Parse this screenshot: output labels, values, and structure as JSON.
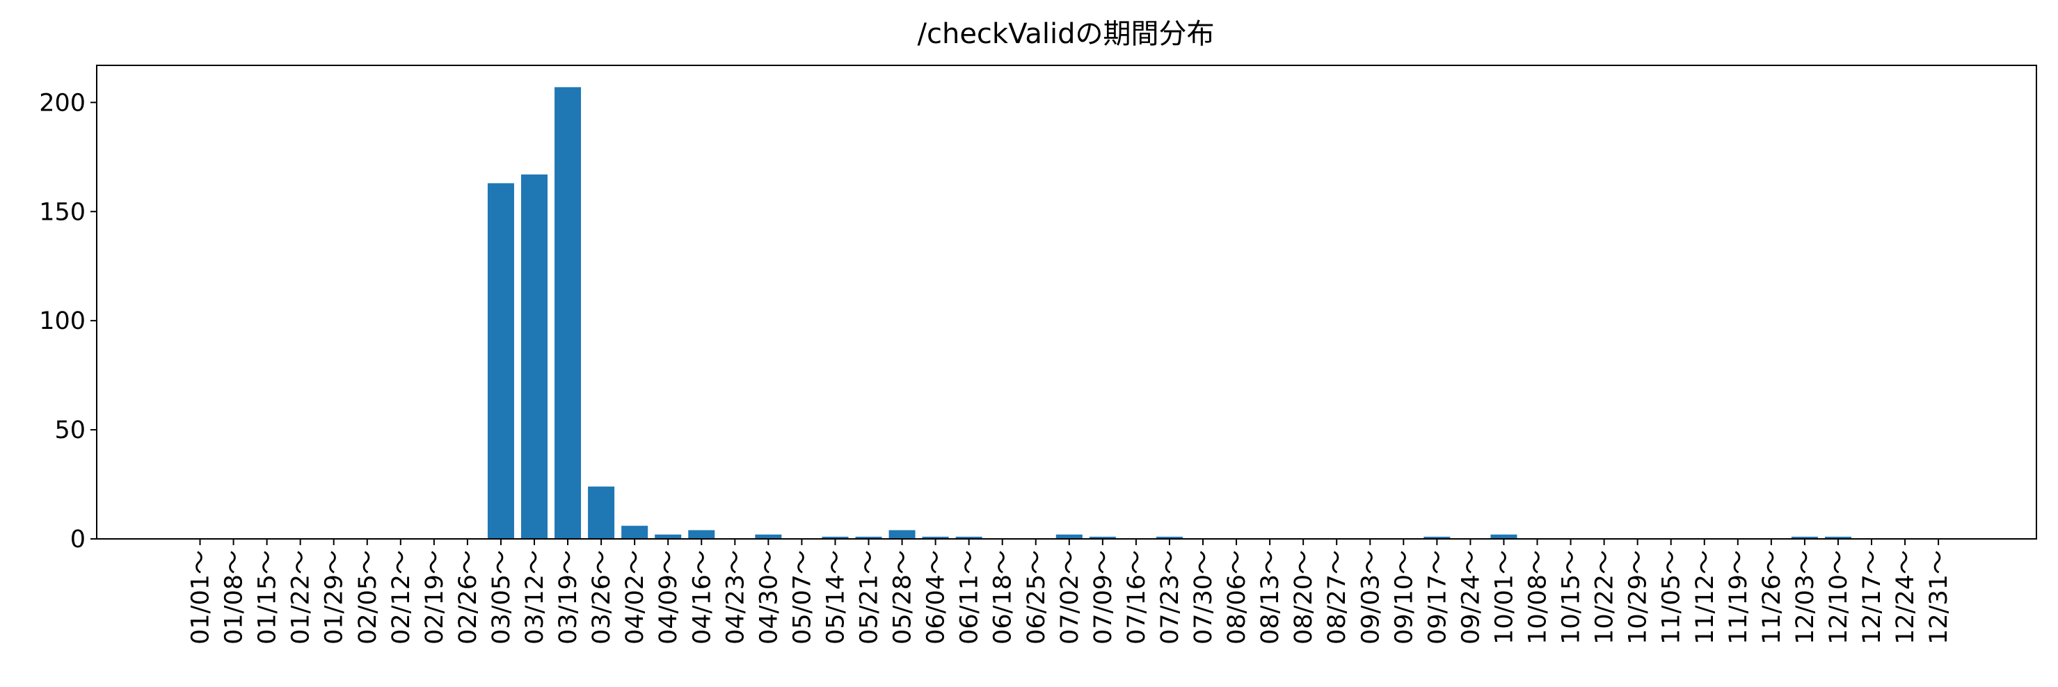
{
  "chart_data": {
    "type": "bar",
    "title": "/checkValidの期間分布",
    "xlabel": "",
    "ylabel": "",
    "ylim": [
      0,
      217
    ],
    "yticks": [
      0,
      50,
      100,
      150,
      200
    ],
    "grid": false,
    "bar_color": "#1f77b4",
    "categories": [
      "01/01～",
      "01/08～",
      "01/15～",
      "01/22～",
      "01/29～",
      "02/05～",
      "02/12～",
      "02/19～",
      "02/26～",
      "03/05～",
      "03/12～",
      "03/19～",
      "03/26～",
      "04/02～",
      "04/09～",
      "04/16～",
      "04/23～",
      "04/30～",
      "05/07～",
      "05/14～",
      "05/21～",
      "05/28～",
      "06/04～",
      "06/11～",
      "06/18～",
      "06/25～",
      "07/02～",
      "07/09～",
      "07/16～",
      "07/23～",
      "07/30～",
      "08/06～",
      "08/13～",
      "08/20～",
      "08/27～",
      "09/03～",
      "09/10～",
      "09/17～",
      "09/24～",
      "10/01～",
      "10/08～",
      "10/15～",
      "10/22～",
      "10/29～",
      "11/05～",
      "11/12～",
      "11/19～",
      "11/26～",
      "12/03～",
      "12/10～",
      "12/17～",
      "12/24～",
      "12/31～"
    ],
    "values": [
      0,
      0,
      0,
      0,
      0,
      0,
      0,
      0,
      0,
      163,
      167,
      207,
      24,
      6,
      2,
      4,
      0,
      2,
      0,
      1,
      1,
      4,
      1,
      1,
      0,
      0,
      2,
      1,
      0,
      1,
      0,
      0,
      0,
      0,
      0,
      0,
      0,
      1,
      0,
      2,
      0,
      0,
      0,
      0,
      0,
      0,
      0,
      0,
      1,
      1,
      0,
      0,
      0
    ]
  }
}
